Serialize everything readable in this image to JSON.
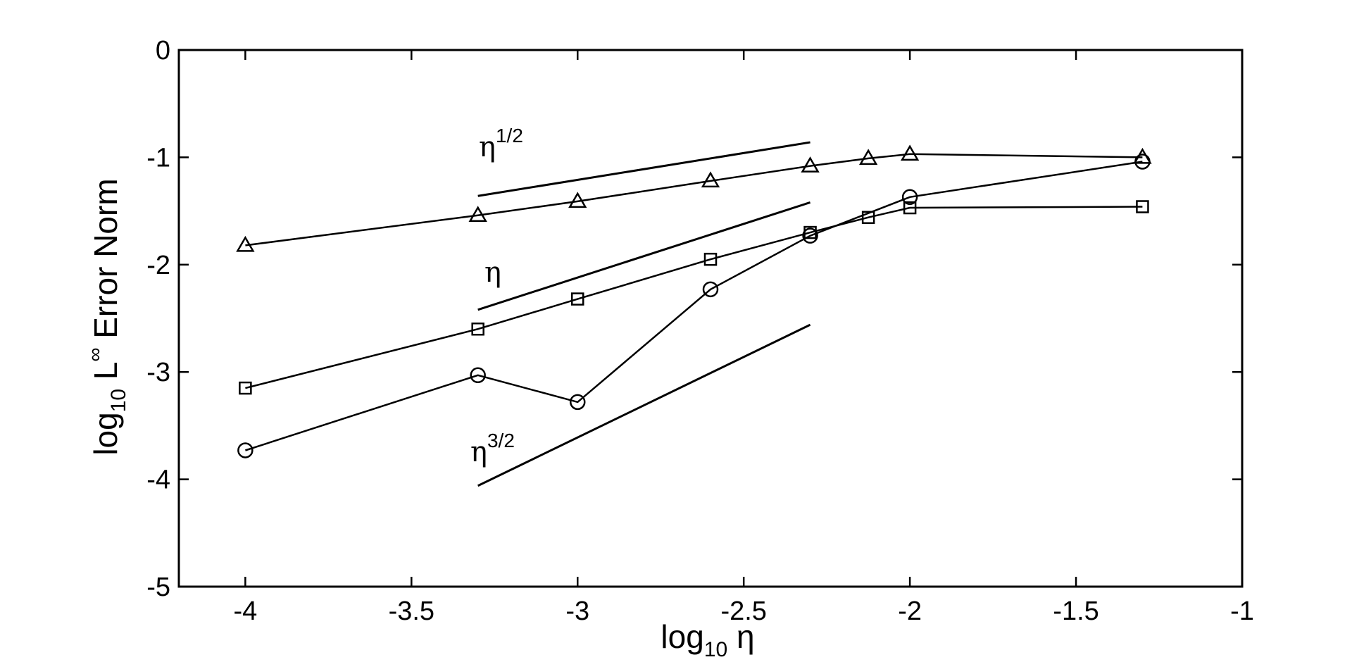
{
  "chart_data": {
    "type": "line",
    "xlabel": {
      "base": "log",
      "sub": "10",
      "rest": " η"
    },
    "ylabel": {
      "base": "log",
      "sub": "10",
      "mid": " L",
      "sup": "∞",
      "rest": " Error Norm"
    },
    "xlim": [
      -4.2,
      -1
    ],
    "ylim": [
      -5,
      0
    ],
    "xticks": [
      -4,
      -3.5,
      -3,
      -2.5,
      -2,
      -1.5,
      -1
    ],
    "xtick_labels": [
      "-4",
      "-3.5",
      "-3",
      "-2.5",
      "-2",
      "-1.5",
      "-1"
    ],
    "yticks": [
      0,
      -1,
      -2,
      -3,
      -4,
      -5
    ],
    "ytick_labels": [
      "0",
      "-1",
      "-2",
      "-3",
      "-4",
      "-5"
    ],
    "grid": false,
    "series": [
      {
        "marker": "triangle",
        "x": [
          -4,
          -3.3,
          -3,
          -2.6,
          -2.3,
          -2.125,
          -2,
          -1.3
        ],
        "y": [
          -1.82,
          -1.54,
          -1.41,
          -1.22,
          -1.08,
          -1.01,
          -0.97,
          -1.0
        ]
      },
      {
        "marker": "square",
        "x": [
          -4,
          -3.3,
          -3,
          -2.6,
          -2.3,
          -2.125,
          -2,
          -1.3
        ],
        "y": [
          -3.15,
          -2.6,
          -2.32,
          -1.95,
          -1.7,
          -1.56,
          -1.47,
          -1.46
        ]
      },
      {
        "marker": "circle",
        "x": [
          -4,
          -3.3,
          -3,
          -2.6,
          -2.3,
          -2,
          -1.3
        ],
        "y": [
          -3.73,
          -3.03,
          -3.28,
          -2.23,
          -1.73,
          -1.37,
          -1.04
        ]
      }
    ],
    "reference_slopes": [
      {
        "base": "η",
        "sup": "1/2",
        "x": [
          -3.3,
          -2.3
        ],
        "y": [
          -1.36,
          -0.86
        ]
      },
      {
        "base": "η",
        "sup": "",
        "x": [
          -3.3,
          -2.3
        ],
        "y": [
          -2.42,
          -1.42
        ]
      },
      {
        "base": "η",
        "sup": "3/2",
        "x": [
          -3.3,
          -2.3
        ],
        "y": [
          -4.06,
          -2.56
        ]
      }
    ]
  }
}
